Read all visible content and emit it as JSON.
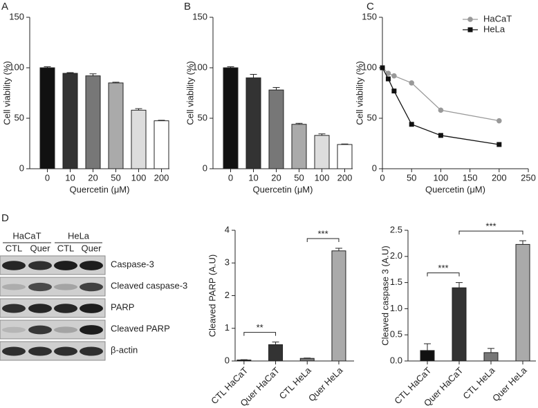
{
  "chart_data": [
    {
      "type": "bar",
      "panel": "A",
      "categories": [
        "0",
        "10",
        "20",
        "50",
        "100",
        "200"
      ],
      "values": [
        100,
        94.5,
        92,
        85,
        58,
        47.5
      ],
      "errors": [
        1,
        0.7,
        2,
        0.7,
        1.5,
        0.5
      ],
      "colors": [
        "#111111",
        "#333333",
        "#777777",
        "#aaaaaa",
        "#dddddd",
        "#ffffff"
      ],
      "ylim": [
        0,
        150
      ],
      "yticks": [
        0,
        50,
        100,
        150
      ],
      "ylabel": "Cell viability (%)",
      "xlabel": "Quercetin (μM)"
    },
    {
      "type": "bar",
      "panel": "B",
      "categories": [
        "0",
        "10",
        "20",
        "50",
        "100",
        "200"
      ],
      "values": [
        100,
        90,
        78,
        44,
        33,
        24
      ],
      "errors": [
        1,
        3.5,
        2.5,
        1,
        1.5,
        0.5
      ],
      "colors": [
        "#111111",
        "#333333",
        "#777777",
        "#aaaaaa",
        "#dddddd",
        "#ffffff"
      ],
      "ylim": [
        0,
        150
      ],
      "yticks": [
        0,
        50,
        100,
        150
      ],
      "ylabel": "Cell viability (%)",
      "xlabel": "Quercetin (μM)"
    },
    {
      "type": "line",
      "panel": "C",
      "x": [
        0,
        10,
        20,
        50,
        100,
        200
      ],
      "series": [
        {
          "name": "HaCaT",
          "color": "#999999",
          "marker": "circle",
          "values": [
            100,
            94.5,
            92,
            85,
            58,
            47.5
          ]
        },
        {
          "name": "HeLa",
          "color": "#111111",
          "marker": "square",
          "values": [
            100,
            89,
            77,
            44,
            33,
            24
          ]
        }
      ],
      "xlim": [
        0,
        250
      ],
      "xticks": [
        0,
        50,
        100,
        150,
        200,
        250
      ],
      "ylim": [
        0,
        150
      ],
      "yticks": [
        0,
        50,
        100,
        150
      ],
      "ylabel": "Cell viability (%)",
      "xlabel": "Quercetin (μM)",
      "legend": "upper right"
    },
    {
      "type": "bar",
      "categories": [
        "CTL HaCaT",
        "Quer HaCaT",
        "CTL HeLa",
        "Quer HeLa"
      ],
      "values": [
        0.03,
        0.5,
        0.08,
        3.37
      ],
      "errors": [
        0.01,
        0.08,
        0.01,
        0.08
      ],
      "colors": [
        "#111111",
        "#333333",
        "#777777",
        "#aaaaaa"
      ],
      "ylim": [
        0,
        4
      ],
      "yticks": [
        0,
        1,
        2,
        3,
        4
      ],
      "ylabel": "Cleaved PARP (A.U)",
      "annotations": [
        {
          "from": 0,
          "to": 1,
          "text": "**"
        },
        {
          "from": 2,
          "to": 3,
          "text": "***"
        }
      ]
    },
    {
      "type": "bar",
      "categories": [
        "CTL HaCaT",
        "Quer HaCaT",
        "CTL HeLa",
        "Quer HeLa"
      ],
      "values": [
        0.2,
        1.4,
        0.16,
        2.23
      ],
      "errors": [
        0.13,
        0.1,
        0.08,
        0.07
      ],
      "colors": [
        "#111111",
        "#333333",
        "#777777",
        "#aaaaaa"
      ],
      "ylim": [
        0,
        2.5
      ],
      "yticks": [
        {
          "value": 0,
          "label": "0.0"
        },
        0.5,
        {
          "value": 1,
          "label": "1.0"
        },
        1.5,
        {
          "value": 2,
          "label": "2.0"
        },
        2.5
      ],
      "ylabel": "Cleaved caspase 3 (A.U)",
      "annotations": [
        {
          "from": 0,
          "to": 1,
          "text": "***"
        },
        {
          "from": 1,
          "to": 3,
          "text": "***"
        }
      ]
    }
  ],
  "blot": {
    "panel": "D",
    "groups": [
      "HaCaT",
      "HeLa"
    ],
    "lanes": [
      "CTL",
      "Quer",
      "CTL",
      "Quer"
    ],
    "rows": [
      "Caspase-3",
      "Cleaved caspase-3",
      "PARP",
      "Cleaved PARP",
      "β-actin"
    ]
  }
}
